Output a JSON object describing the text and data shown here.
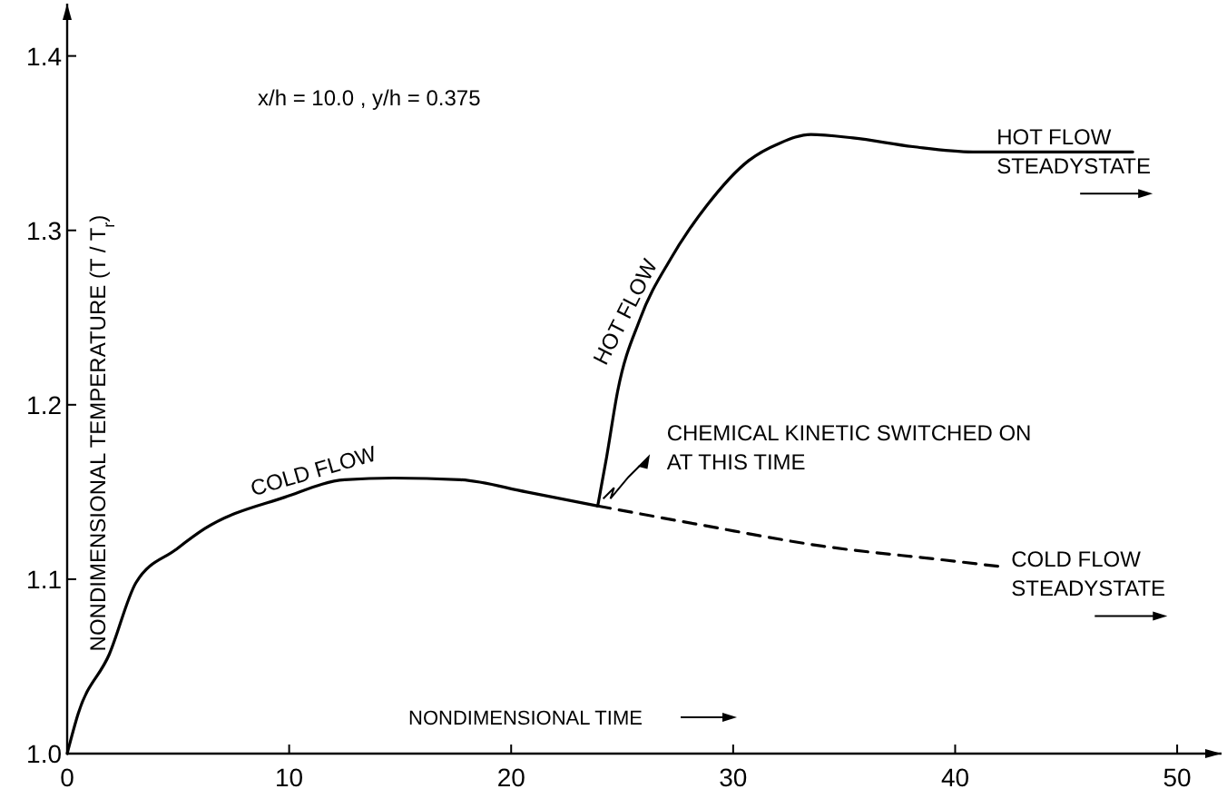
{
  "chart_data": {
    "type": "line",
    "xlabel": "NONDIMENSIONAL TIME",
    "ylabel": "NONDIMENSIONAL TEMPERATURE (T / T$_{r}$)",
    "xlim": [
      0,
      52
    ],
    "ylim": [
      1.0,
      1.43
    ],
    "xticks": [
      0,
      10,
      20,
      30,
      40,
      50
    ],
    "yticks": [
      {
        "value": 1.0,
        "label": "1.0"
      },
      1.1,
      1.2,
      1.3,
      1.4
    ],
    "grid": false,
    "marker": "none",
    "series": [
      {
        "color": "#000000",
        "line_style": "solid",
        "x": [
          0,
          0.5,
          1.9,
          3.1,
          4.9,
          6.2,
          9.8,
          12.5,
          14.7,
          17.7,
          20.7,
          23.9
        ],
        "values": [
          1.0,
          1.023,
          1.057,
          1.098,
          1.117,
          1.129,
          1.147,
          1.157,
          1.158,
          1.157,
          1.15,
          1.142
        ]
      },
      {
        "color": "#000000",
        "line_style": "solid",
        "x": [
          23.9,
          24.3,
          24.8,
          25.8,
          27.2,
          28.8,
          30.7,
          32.1,
          33.5,
          35.4,
          38.1,
          40.8,
          44.9,
          48
        ],
        "values": [
          1.142,
          1.17,
          1.208,
          1.249,
          1.284,
          1.314,
          1.34,
          1.35,
          1.355,
          1.353,
          1.348,
          1.345,
          1.345,
          1.345
        ]
      },
      {
        "color": "#000000",
        "line_style": "dashed",
        "x": [
          23.9,
          28.6,
          34,
          39.5,
          42.2
        ],
        "values": [
          1.142,
          1.131,
          1.119,
          1.111,
          1.107
        ]
      }
    ],
    "annotations": [
      "x/h = 10.0 , y/h = 0.375",
      {
        "text": "COLD FLOW",
        "x": 11.3,
        "y": 1.153
      },
      {
        "text": "HOT FLOW",
        "x": 25.8,
        "y": 1.249
      },
      {
        "text": "CHEMICAL KINETIC SWITCHED ON\nAT THIS TIME",
        "x": 23.9,
        "y": 1.142
      },
      {
        "text": "HOT FLOW\nSTEADYSTATE",
        "x": 48,
        "y": 1.345
      },
      {
        "text": "COLD FLOW\nSTEADYSTATE",
        "x": 42.2,
        "y": 1.107
      }
    ]
  }
}
